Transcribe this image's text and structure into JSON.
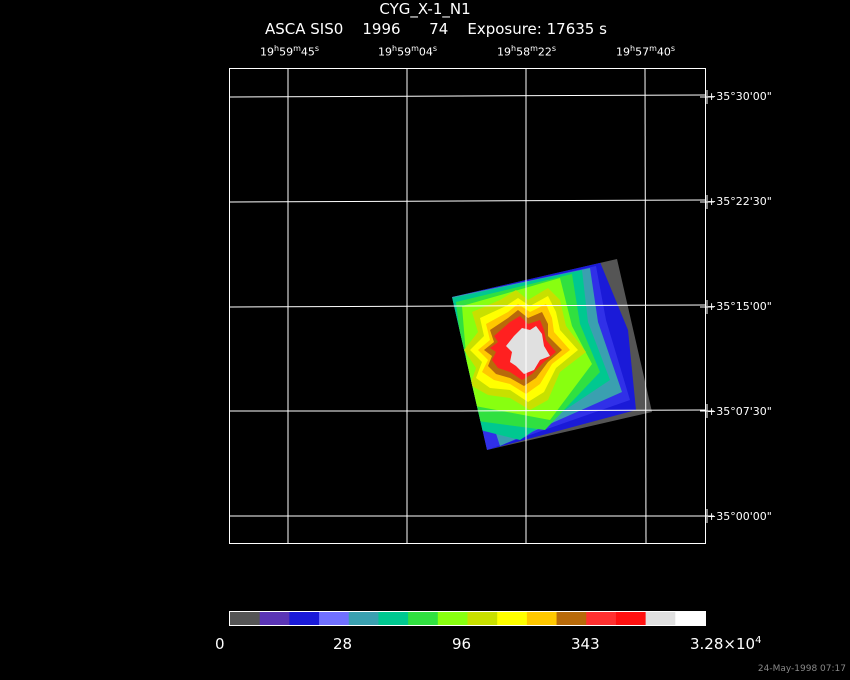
{
  "header": {
    "title": "CYG_X-1_N1",
    "instrument": "ASCA SIS0",
    "year": "1996",
    "sequence": "74",
    "exposure": "Exposure: 17635 s"
  },
  "ra_labels": [
    {
      "h": "19",
      "m": "59",
      "s": "45"
    },
    {
      "h": "19",
      "m": "59",
      "s": "04"
    },
    {
      "h": "19",
      "m": "58",
      "s": "22"
    },
    {
      "h": "19",
      "m": "57",
      "s": "40"
    }
  ],
  "dec_labels": [
    "+35°30'00\"",
    "+35°22'30\"",
    "+35°15'00\"",
    "+35°07'30\"",
    "+35°00'00\""
  ],
  "colorbar": {
    "colors": [
      "#555555",
      "#5b35b5",
      "#1a1ad8",
      "#7070ff",
      "#3aa0b0",
      "#00c890",
      "#30e040",
      "#88ff10",
      "#c8e000",
      "#ffff00",
      "#ffc800",
      "#b86a0a",
      "#ff3030",
      "#ff1010",
      "#e0e0e0",
      "#ffffff"
    ],
    "labels": [
      "0",
      "28",
      "96",
      "343",
      "3.28×10",
      "4"
    ]
  },
  "footer": "24-May-1998 07:17"
}
